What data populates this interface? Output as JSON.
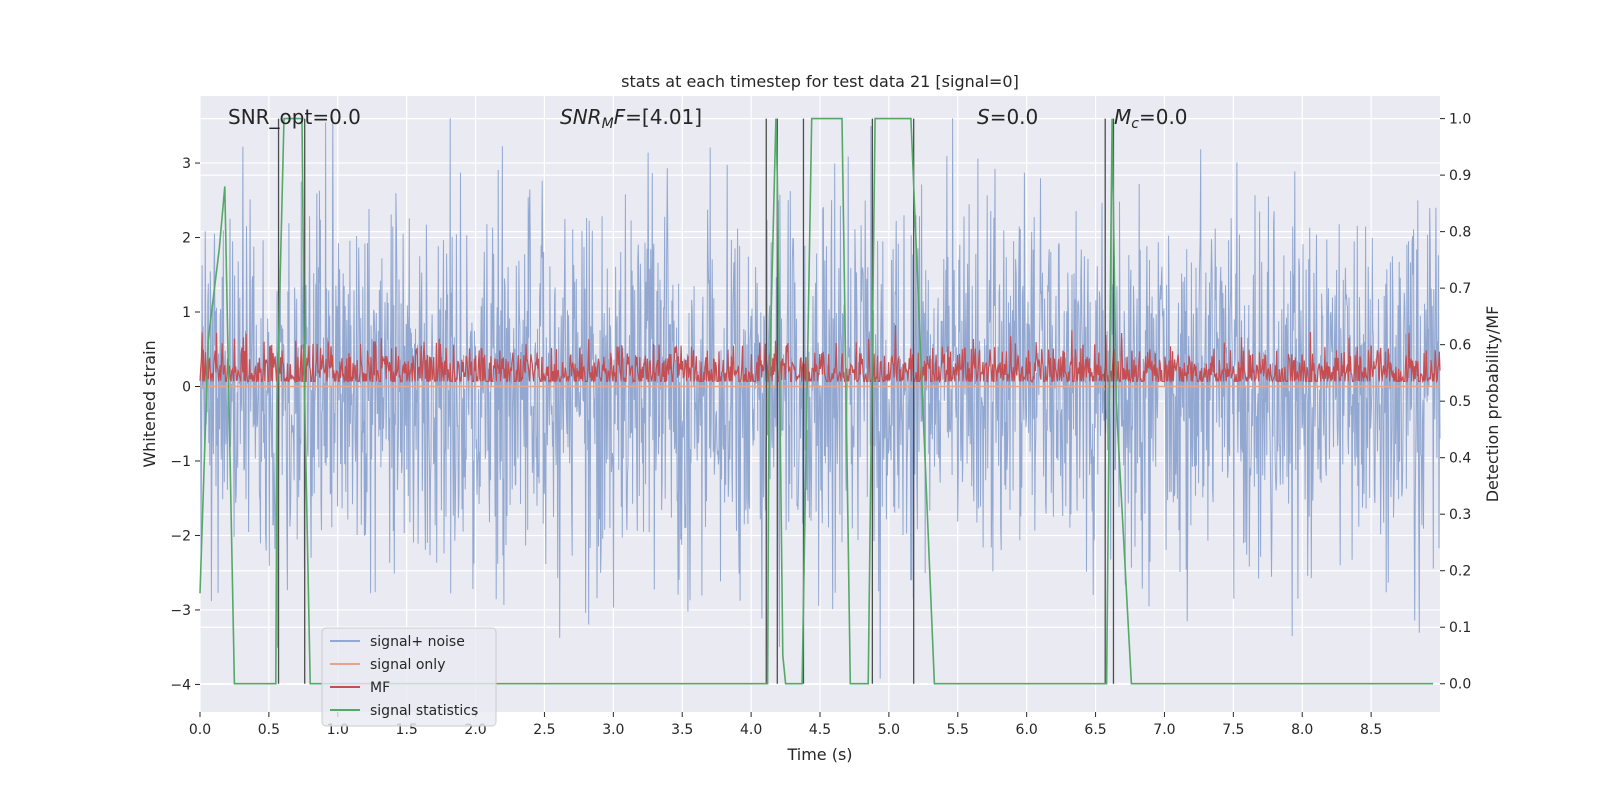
{
  "chart_data": {
    "type": "line",
    "title": "stats at each timestep for test data 21 [signal=0]",
    "xlabel": "Time (s)",
    "ylabel": "Whitened strain",
    "y2label": "Detection probability/MF",
    "xlim": [
      0.0,
      9.0
    ],
    "ylim": [
      -4.37,
      3.9
    ],
    "y2lim": [
      -0.05,
      1.04
    ],
    "xticks": [
      "0.0",
      "0.5",
      "1.0",
      "1.5",
      "2.0",
      "2.5",
      "3.0",
      "3.5",
      "4.0",
      "4.5",
      "5.0",
      "5.5",
      "6.0",
      "6.5",
      "7.0",
      "7.5",
      "8.0",
      "8.5"
    ],
    "yticks": [
      "3",
      "2",
      "1",
      "0",
      "−1",
      "−2",
      "−3",
      "−4"
    ],
    "y2ticks": [
      "1.0",
      "0.9",
      "0.8",
      "0.7",
      "0.6",
      "0.5",
      "0.4",
      "0.3",
      "0.2",
      "0.1",
      "0.0"
    ],
    "grid": true,
    "legend_position": "lower-left",
    "annotations": {
      "snr_opt": "SNR_opt=0.0",
      "snr_mf_var": "SNR",
      "snr_mf_sub": "M",
      "snr_mf_var2": "F",
      "snr_mf_val": "=[4.01]",
      "s_var": "S",
      "s_val": "=0.0",
      "mc_var": "M",
      "mc_sub": "c",
      "mc_val": "=0.0"
    },
    "series": [
      {
        "name": "signal+ noise",
        "color": "#92a8d1",
        "kind": "noise",
        "y_range": [
          -4.0,
          3.6
        ]
      },
      {
        "name": "signal only",
        "color": "#e8a48a",
        "kind": "flat",
        "value": 0.0
      },
      {
        "name": "MF",
        "color": "#c44e52",
        "kind": "mf",
        "y_range": [
          0.0,
          0.8
        ]
      },
      {
        "name": "signal statistics",
        "color": "#55a868",
        "axis": "right",
        "x": [
          0.0,
          0.06,
          0.14,
          0.18,
          0.25,
          0.55,
          0.56,
          0.61,
          0.62,
          0.74,
          0.76,
          0.8,
          4.12,
          4.13,
          4.18,
          4.19,
          4.23,
          4.25,
          4.37,
          4.44,
          4.66,
          4.72,
          4.73,
          4.85,
          4.9,
          5.16,
          5.33,
          6.58,
          6.6,
          6.62,
          6.65,
          6.76,
          8.95
        ],
        "y": [
          0.16,
          0.61,
          0.77,
          0.88,
          0.0,
          0.0,
          0.5,
          1.0,
          1.0,
          1.0,
          0.5,
          0.0,
          0.0,
          0.5,
          1.0,
          0.9,
          0.05,
          0.0,
          0.0,
          1.0,
          1.0,
          0.0,
          0.0,
          0.0,
          1.0,
          1.0,
          0.0,
          0.0,
          0.5,
          1.0,
          0.5,
          0.0,
          0.0
        ]
      },
      {
        "name": "",
        "color": "#4d4d4d",
        "kind": "vlines",
        "x": [
          0.57,
          0.76,
          4.11,
          4.19,
          4.38,
          4.88,
          5.18,
          6.57,
          6.63
        ]
      }
    ]
  }
}
